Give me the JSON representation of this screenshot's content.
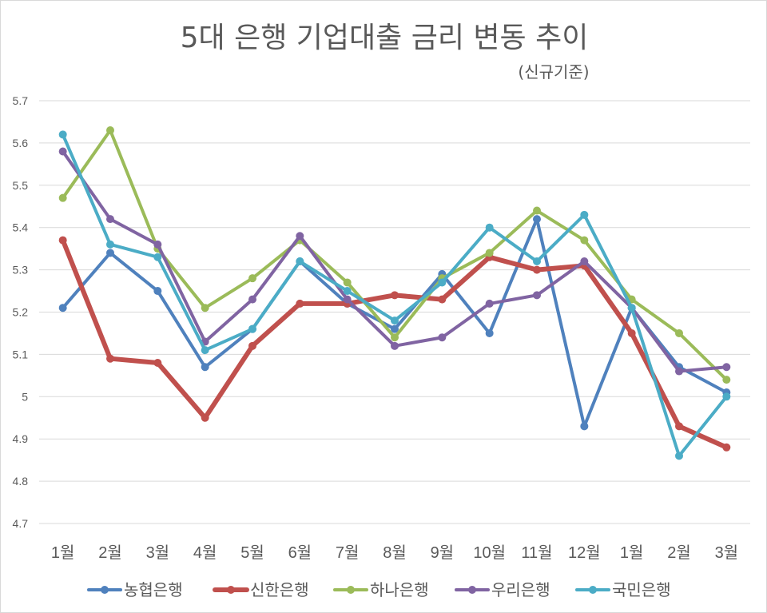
{
  "chart_data": {
    "type": "line",
    "title": "5대 은행 기업대출 금리 변동 추이",
    "subtitle": "(신규기준)",
    "categories": [
      "1월",
      "2월",
      "3월",
      "4월",
      "5월",
      "6월",
      "7월",
      "8월",
      "9월",
      "10월",
      "11월",
      "12월",
      "1월",
      "2월",
      "3월"
    ],
    "ylim": [
      4.7,
      5.7
    ],
    "yticks": [
      "5.7",
      "5.6",
      "5.5",
      "5.4",
      "5.3",
      "5.2",
      "5.1",
      "5",
      "4.9",
      "4.8",
      "4.7"
    ],
    "grid": true,
    "legend_position": "bottom",
    "series": [
      {
        "name": "농협은행",
        "color": "#4f81bd",
        "thick": false,
        "values": [
          5.21,
          5.34,
          5.25,
          5.07,
          5.16,
          5.32,
          5.22,
          5.16,
          5.29,
          5.15,
          5.42,
          4.93,
          5.21,
          5.07,
          5.01
        ]
      },
      {
        "name": "신한은행",
        "color": "#c0504d",
        "thick": true,
        "values": [
          5.37,
          5.09,
          5.08,
          4.95,
          5.12,
          5.22,
          5.22,
          5.24,
          5.23,
          5.33,
          5.3,
          5.31,
          5.15,
          4.93,
          4.88
        ]
      },
      {
        "name": "하나은행",
        "color": "#9bbb59",
        "thick": false,
        "values": [
          5.47,
          5.63,
          5.35,
          5.21,
          5.28,
          5.37,
          5.27,
          5.14,
          5.28,
          5.34,
          5.44,
          5.37,
          5.23,
          5.15,
          5.04
        ]
      },
      {
        "name": "우리은행",
        "color": "#8064a2",
        "thick": false,
        "values": [
          5.58,
          5.42,
          5.36,
          5.13,
          5.23,
          5.38,
          5.23,
          5.12,
          5.14,
          5.22,
          5.24,
          5.32,
          5.21,
          5.06,
          5.07
        ]
      },
      {
        "name": "국민은행",
        "color": "#4bacc6",
        "thick": false,
        "values": [
          5.62,
          5.36,
          5.33,
          5.11,
          5.16,
          5.32,
          5.25,
          5.18,
          5.27,
          5.4,
          5.32,
          5.43,
          5.21,
          4.86,
          5.0
        ]
      }
    ]
  }
}
